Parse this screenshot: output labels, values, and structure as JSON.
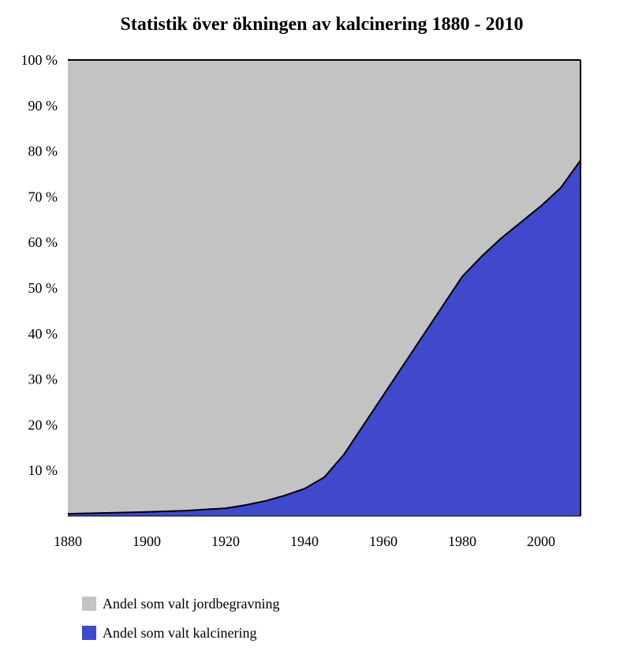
{
  "chart_data": {
    "type": "area",
    "stacking": "percent",
    "title": "Statistik över ökningen av kalcinering 1880 - 2010",
    "xlabel": "",
    "ylabel": "",
    "xlim": [
      1880,
      2010
    ],
    "ylim": [
      0,
      100
    ],
    "x_ticks": [
      "1880",
      "1900",
      "1920",
      "1940",
      "1960",
      "1980",
      "2000"
    ],
    "y_ticks": [
      "10 %",
      "20 %",
      "30 %",
      "40 %",
      "50 %",
      "60 %",
      "70 %",
      "80 %",
      "90 %",
      "100 %"
    ],
    "x": [
      1880,
      1890,
      1900,
      1910,
      1920,
      1925,
      1930,
      1935,
      1940,
      1945,
      1950,
      1955,
      1960,
      1965,
      1970,
      1975,
      1980,
      1985,
      1990,
      1995,
      2000,
      2005,
      2010
    ],
    "series": [
      {
        "name": "Andel som valt kalcinering",
        "color": "#4048cc",
        "values": [
          0.5,
          0.7,
          0.9,
          1.2,
          1.7,
          2.4,
          3.3,
          4.5,
          6.0,
          8.5,
          13.5,
          20,
          26.5,
          33,
          39.5,
          46,
          52.5,
          57,
          61,
          64.5,
          68,
          72,
          78
        ]
      },
      {
        "name": "Andel som valt jordbegravning",
        "color": "#c3c3c3",
        "values": [
          99.5,
          99.3,
          99.1,
          98.8,
          98.3,
          97.6,
          96.7,
          95.5,
          94.0,
          91.5,
          86.5,
          80,
          73.5,
          67,
          60.5,
          54,
          47.5,
          43,
          39,
          35.5,
          32,
          28,
          22
        ]
      }
    ],
    "legend": {
      "position": "bottom-left",
      "items": [
        "Andel som valt jordbegravning",
        "Andel som valt kalcinering"
      ]
    }
  }
}
